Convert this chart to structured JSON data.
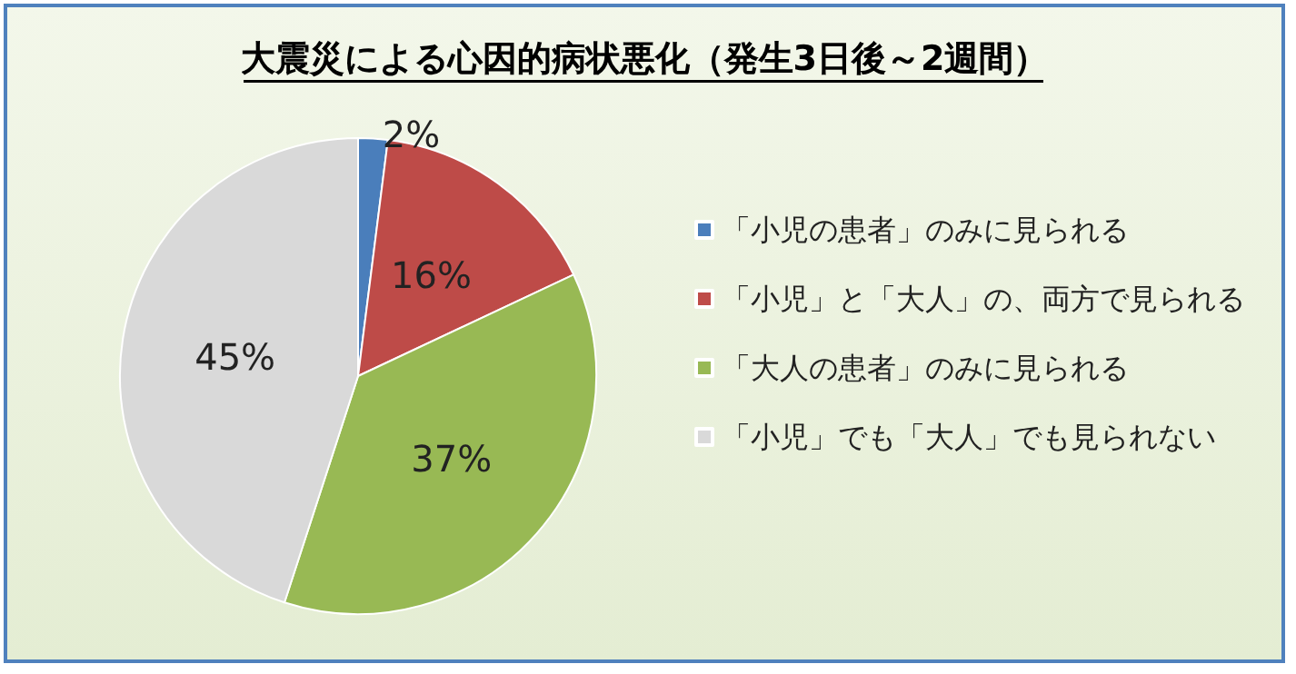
{
  "chart_data": {
    "type": "pie",
    "title": "大震災による心因的病状悪化（発生3日後～2週間）",
    "categories": [
      "「小児の患者」のみに見られる",
      "「小児」と「大人」の、両方で見られる",
      "「大人の患者」のみに見られる",
      "「小児」でも「大人」でも見られない"
    ],
    "values": [
      2,
      16,
      37,
      45
    ],
    "colors": [
      "#4a7ebb",
      "#be4b48",
      "#98b954",
      "#d9d9d9"
    ],
    "value_labels": [
      "2%",
      "16%",
      "37%",
      "45%"
    ],
    "legend": "right"
  }
}
